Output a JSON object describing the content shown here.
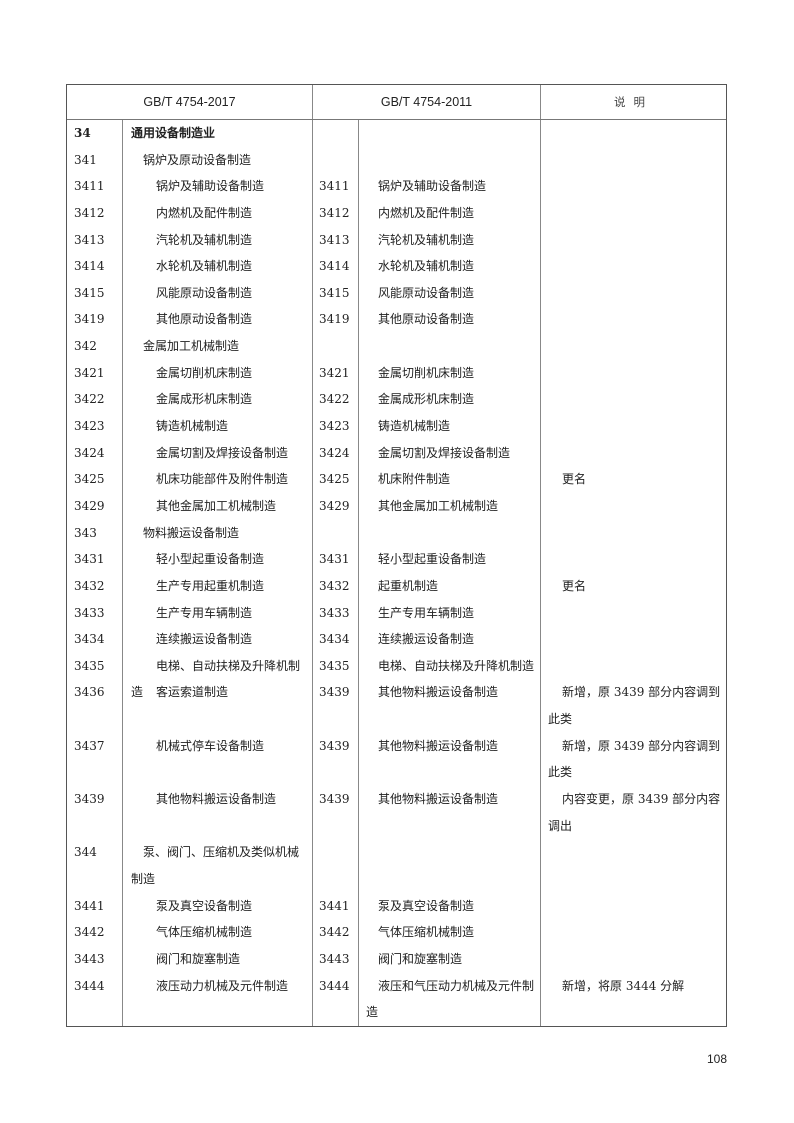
{
  "header": {
    "new_std": "GB/T 4754-2017",
    "old_std": "GB/T 4754-2011",
    "note": "说明"
  },
  "rows": [
    {
      "code": "34",
      "name": "通用设备制造业",
      "level": 2,
      "old_code": "",
      "old_name": "",
      "note": "",
      "lines": 1,
      "bold": true
    },
    {
      "code": "341",
      "name": "锅炉及原动设备制造",
      "level": 3,
      "old_code": "",
      "old_name": "",
      "note": "",
      "lines": 1
    },
    {
      "code": "3411",
      "name": "锅炉及辅助设备制造",
      "level": 4,
      "old_code": "3411",
      "old_name": "锅炉及辅助设备制造",
      "note": "",
      "lines": 1
    },
    {
      "code": "3412",
      "name": "内燃机及配件制造",
      "level": 4,
      "old_code": "3412",
      "old_name": "内燃机及配件制造",
      "note": "",
      "lines": 1
    },
    {
      "code": "3413",
      "name": "汽轮机及辅机制造",
      "level": 4,
      "old_code": "3413",
      "old_name": "汽轮机及辅机制造",
      "note": "",
      "lines": 1
    },
    {
      "code": "3414",
      "name": "水轮机及辅机制造",
      "level": 4,
      "old_code": "3414",
      "old_name": "水轮机及辅机制造",
      "note": "",
      "lines": 1
    },
    {
      "code": "3415",
      "name": "风能原动设备制造",
      "level": 4,
      "old_code": "3415",
      "old_name": "风能原动设备制造",
      "note": "",
      "lines": 1
    },
    {
      "code": "3419",
      "name": "其他原动设备制造",
      "level": 4,
      "old_code": "3419",
      "old_name": "其他原动设备制造",
      "note": "",
      "lines": 1
    },
    {
      "code": "342",
      "name": "金属加工机械制造",
      "level": 3,
      "old_code": "",
      "old_name": "",
      "note": "",
      "lines": 1
    },
    {
      "code": "3421",
      "name": "金属切削机床制造",
      "level": 4,
      "old_code": "3421",
      "old_name": "金属切削机床制造",
      "note": "",
      "lines": 1
    },
    {
      "code": "3422",
      "name": "金属成形机床制造",
      "level": 4,
      "old_code": "3422",
      "old_name": "金属成形机床制造",
      "note": "",
      "lines": 1
    },
    {
      "code": "3423",
      "name": "铸造机械制造",
      "level": 4,
      "old_code": "3423",
      "old_name": "铸造机械制造",
      "note": "",
      "lines": 1
    },
    {
      "code": "3424",
      "name": "金属切割及焊接设备制造",
      "level": 4,
      "old_code": "3424",
      "old_name": "金属切割及焊接设备制造",
      "note": "",
      "lines": 1
    },
    {
      "code": "3425",
      "name": "机床功能部件及附件制造",
      "level": 4,
      "old_code": "3425",
      "old_name": "机床附件制造",
      "note": "更名",
      "lines": 1
    },
    {
      "code": "3429",
      "name": "其他金属加工机械制造",
      "level": 4,
      "old_code": "3429",
      "old_name": "其他金属加工机械制造",
      "note": "",
      "lines": 1
    },
    {
      "code": "343",
      "name": "物料搬运设备制造",
      "level": 3,
      "old_code": "",
      "old_name": "",
      "note": "",
      "lines": 1
    },
    {
      "code": "3431",
      "name": "轻小型起重设备制造",
      "level": 4,
      "old_code": "3431",
      "old_name": "轻小型起重设备制造",
      "note": "",
      "lines": 1
    },
    {
      "code": "3432",
      "name": "生产专用起重机制造",
      "level": 4,
      "old_code": "3432",
      "old_name": "起重机制造",
      "note": "更名",
      "lines": 1
    },
    {
      "code": "3433",
      "name": "生产专用车辆制造",
      "level": 4,
      "old_code": "3433",
      "old_name": "生产专用车辆制造",
      "note": "",
      "lines": 1
    },
    {
      "code": "3434",
      "name": "连续搬运设备制造",
      "level": 4,
      "old_code": "3434",
      "old_name": "连续搬运设备制造",
      "note": "",
      "lines": 1
    },
    {
      "code": "3435",
      "name": "电梯、自动扶梯及升降机制造",
      "level": 4,
      "old_code": "3435",
      "old_name": "电梯、自动扶梯及升降机制造",
      "note": "",
      "lines": 1
    },
    {
      "code": "3436",
      "name": "客运索道制造",
      "level": 4,
      "old_code": "3439",
      "old_name": "其他物料搬运设备制造",
      "note": "新增，原 3439 部分内容调到此类",
      "lines": 2
    },
    {
      "code": "3437",
      "name": "机械式停车设备制造",
      "level": 4,
      "old_code": "3439",
      "old_name": "其他物料搬运设备制造",
      "note": "新增，原 3439 部分内容调到此类",
      "lines": 2
    },
    {
      "code": "3439",
      "name": "其他物料搬运设备制造",
      "level": 4,
      "old_code": "3439",
      "old_name": "其他物料搬运设备制造",
      "note": "内容变更，原 3439 部分内容调出",
      "lines": 2
    },
    {
      "code": "344",
      "name": "泵、阀门、压缩机及类似机械制造",
      "level": 3,
      "old_code": "",
      "old_name": "",
      "note": "",
      "lines": 2
    },
    {
      "code": "3441",
      "name": "泵及真空设备制造",
      "level": 4,
      "old_code": "3441",
      "old_name": "泵及真空设备制造",
      "note": "",
      "lines": 1
    },
    {
      "code": "3442",
      "name": "气体压缩机械制造",
      "level": 4,
      "old_code": "3442",
      "old_name": "气体压缩机械制造",
      "note": "",
      "lines": 1
    },
    {
      "code": "3443",
      "name": "阀门和旋塞制造",
      "level": 4,
      "old_code": "3443",
      "old_name": "阀门和旋塞制造",
      "note": "",
      "lines": 1
    },
    {
      "code": "3444",
      "name": "液压动力机械及元件制造",
      "level": 4,
      "old_code": "3444",
      "old_name": "液压和气压动力机械及元件制造",
      "note": "新增，将原 3444 分解",
      "lines": 2
    }
  ],
  "page_number": "108"
}
